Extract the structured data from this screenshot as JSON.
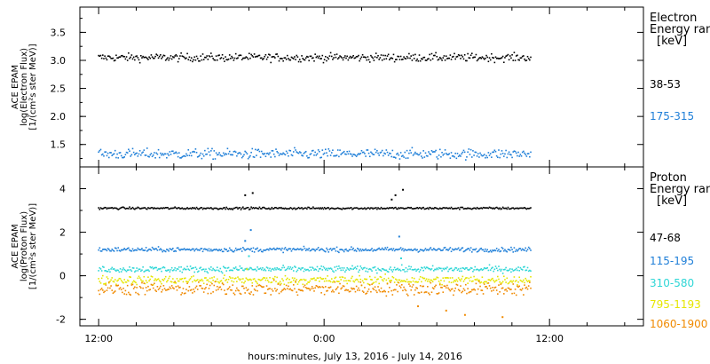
{
  "chart_data": [
    {
      "type": "scatter",
      "id": "electron",
      "ylabel_lines": [
        "ACE EPAM",
        "log(Electron Flux)",
        "[1/(cm²s ster MeV)]"
      ],
      "ylim": [
        1.1,
        3.95
      ],
      "yticks": [
        1.5,
        2.0,
        2.5,
        3.0,
        3.5
      ],
      "ytick_labels": [
        "1.5",
        "2.0",
        "2.5",
        "3.0",
        "3.5"
      ],
      "legend_title_lines": [
        "Electron",
        "Energy range",
        "[keV]"
      ],
      "series": [
        {
          "name": "38-53",
          "color": "#000000",
          "base": 3.05,
          "spread": 0.07,
          "spikes": []
        },
        {
          "name": "175-315",
          "color": "#1f7fd8",
          "base": 1.33,
          "spread": 0.09,
          "spikes": []
        }
      ]
    },
    {
      "type": "scatter",
      "id": "proton",
      "ylabel_lines": [
        "ACE EPAM",
        "log(Proton Flux)",
        "[1/(cm²s ster MeV)]"
      ],
      "ylim": [
        -2.3,
        5.0
      ],
      "yticks": [
        -2,
        0,
        2,
        4
      ],
      "ytick_labels": [
        "-2",
        "0",
        "2",
        "4"
      ],
      "legend_title_lines": [
        "Proton",
        "Energy range",
        "[keV]"
      ],
      "series": [
        {
          "name": "47-68",
          "color": "#000000",
          "base": 3.1,
          "spread": 0.05,
          "spikes": [
            [
              -4.2,
              3.7
            ],
            [
              -3.8,
              3.8
            ],
            [
              3.8,
              3.7
            ],
            [
              4.2,
              3.95
            ],
            [
              3.6,
              3.5
            ]
          ]
        },
        {
          "name": "115-195",
          "color": "#1f7fd8",
          "base": 1.2,
          "spread": 0.1,
          "spikes": [
            [
              -3.9,
              2.1
            ],
            [
              -4.2,
              1.6
            ],
            [
              4.0,
              1.8
            ]
          ]
        },
        {
          "name": "310-580",
          "color": "#2fd6d6",
          "base": 0.3,
          "spread": 0.14,
          "spikes": [
            [
              -4.0,
              0.9
            ],
            [
              4.1,
              0.8
            ]
          ]
        },
        {
          "name": "795-1193",
          "color": "#e6e600",
          "base": -0.2,
          "spread": 0.2,
          "spikes": [
            [
              -4.1,
              0.3
            ]
          ]
        },
        {
          "name": "1060-1900",
          "color": "#f08a00",
          "base": -0.6,
          "spread": 0.3,
          "spikes": [
            [
              5.0,
              -1.4
            ],
            [
              6.5,
              -1.6
            ],
            [
              7.5,
              -1.8
            ],
            [
              9.5,
              -1.9
            ]
          ]
        }
      ]
    }
  ],
  "x_axis": {
    "label": "hours:minutes, July 13, 2016 - July 14, 2016",
    "range_hours": [
      -13,
      17
    ],
    "data_range_hours": [
      -12,
      11
    ],
    "major_ticks_hours": [
      -12,
      0,
      12
    ],
    "major_tick_labels": [
      "12:00",
      "0:00",
      "12:00"
    ],
    "minor_step_hours": 2
  }
}
